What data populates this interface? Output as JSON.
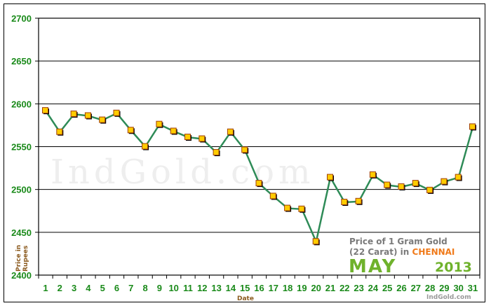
{
  "chart_data": {
    "type": "line",
    "title": "Price of 1 Gram Gold (22 Carat) in CHENNAI",
    "subtitle": "MAY 2013",
    "xlabel": "Date",
    "ylabel": "Price in Rupees",
    "ylim": [
      2400,
      2700
    ],
    "yticks": [
      2400,
      2450,
      2500,
      2550,
      2600,
      2650,
      2700
    ],
    "grid": true,
    "legend_position": "bottom-right inside plot",
    "categories": [
      "1",
      "2",
      "3",
      "4",
      "5",
      "6",
      "7",
      "8",
      "9",
      "10",
      "11",
      "12",
      "13",
      "14",
      "15",
      "16",
      "17",
      "18",
      "19",
      "20",
      "21",
      "22",
      "23",
      "24",
      "25",
      "26",
      "27",
      "28",
      "29",
      "30",
      "31"
    ],
    "series": [
      {
        "name": "Price of 1 Gram Gold (22 Carat)",
        "values": [
          2592,
          2567,
          2588,
          2586,
          2581,
          2589,
          2569,
          2550,
          2576,
          2568,
          2561,
          2559,
          2543,
          2567,
          2546,
          2507,
          2492,
          2478,
          2477,
          2439,
          2514,
          2485,
          2486,
          2517,
          2505,
          2503,
          2507,
          2499,
          2509,
          2514,
          2573
        ],
        "line_color": "#2e8b57",
        "marker_fill": "#ffcc00",
        "marker_border": "#a0400a"
      }
    ]
  },
  "legend": {
    "line1": "Price of 1 Gram Gold",
    "line2_prefix": "(22 Carat) in ",
    "city": "CHENNAI",
    "month": "MAY",
    "year": "2013"
  },
  "watermark": "IndGold.com",
  "credit": "IndGold.com",
  "axis": {
    "x_title": "Date",
    "y_title_line1": "Price in",
    "y_title_line2": "Rupees"
  }
}
